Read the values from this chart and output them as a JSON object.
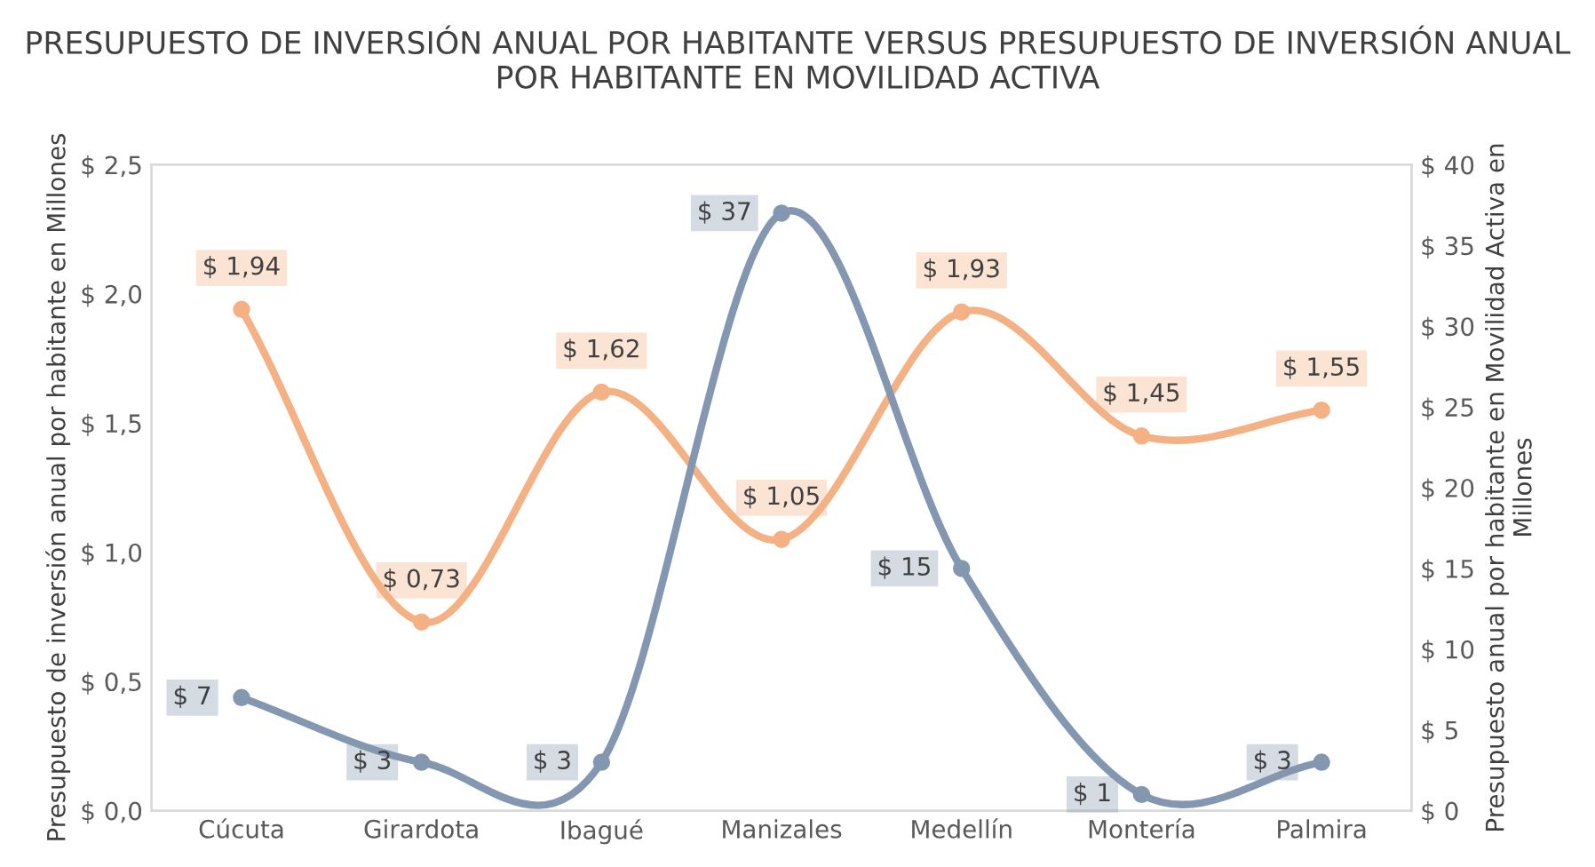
{
  "chart_data": {
    "type": "line",
    "title": "PRESUPUESTO DE INVERSIÓN ANUAL POR HABITANTE VERSUS PRESUPUESTO DE INVERSIÓN ANUAL POR HABITANTE EN MOVILIDAD ACTIVA",
    "ylabel": "Presupuesto de inversión anual por habitante en Millones",
    "y2label": "Presupuesto anual por habitante en Movilidad Activa en Millones",
    "categories": [
      "Cúcuta",
      "Girardota",
      "Ibagué",
      "Manizales",
      "Medellín",
      "Montería",
      "Palmira"
    ],
    "series": [
      {
        "color": "#f4b183",
        "values": [
          1.94,
          0.73,
          1.62,
          1.05,
          1.93,
          1.45,
          1.55
        ],
        "value_labels": [
          "$ 1,94",
          "$ 0,73",
          "$ 1,62",
          "$ 1,05",
          "$ 1,93",
          "$ 1,45",
          "$ 1,55"
        ]
      },
      {
        "color": "#8497b0",
        "axis": "y2",
        "values": [
          7,
          3,
          3,
          37,
          15,
          1,
          3
        ],
        "value_labels": [
          "$ 7",
          "$ 3",
          "$ 3",
          "$ 37",
          "$ 15",
          "$ 1",
          "$ 3"
        ]
      }
    ],
    "ylim": [
      0,
      2.5
    ],
    "yticks": [
      {
        "value": 0,
        "label": "$ 0,0"
      },
      {
        "value": 0.5,
        "label": "$ 0,5"
      },
      {
        "value": 1.0,
        "label": "$ 1,0"
      },
      {
        "value": 1.5,
        "label": "$ 1,5"
      },
      {
        "value": 2.0,
        "label": "$ 2,0"
      },
      {
        "value": 2.5,
        "label": "$ 2,5"
      }
    ],
    "y2lim": [
      0,
      40
    ],
    "y2ticks": [
      {
        "value": 0,
        "label": "$ 0"
      },
      {
        "value": 5,
        "label": "$ 5"
      },
      {
        "value": 10,
        "label": "$ 10"
      },
      {
        "value": 15,
        "label": "$ 15"
      },
      {
        "value": 20,
        "label": "$ 20"
      },
      {
        "value": 25,
        "label": "$ 25"
      },
      {
        "value": 30,
        "label": "$ 30"
      },
      {
        "value": 35,
        "label": "$ 35"
      },
      {
        "value": 40,
        "label": "$ 40"
      }
    ],
    "marker": "circle",
    "line_style": "solid",
    "grid": false,
    "legend": false
  }
}
